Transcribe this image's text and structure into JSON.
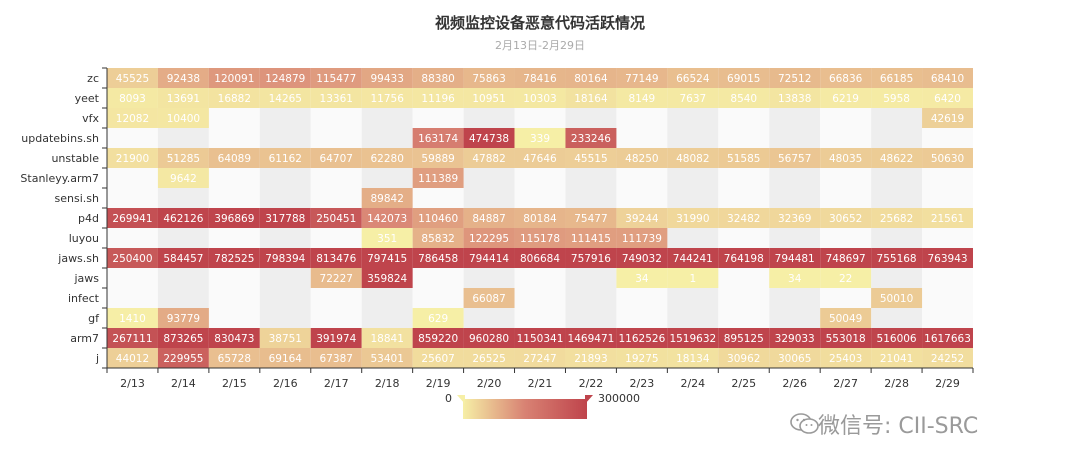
{
  "chart_data": {
    "type": "heatmap",
    "title": "视频监控设备恶意代码活跃情况",
    "subtitle": "2月13日-2月29日",
    "x": [
      "2/13",
      "2/14",
      "2/15",
      "2/16",
      "2/17",
      "2/18",
      "2/19",
      "2/20",
      "2/21",
      "2/22",
      "2/23",
      "2/24",
      "2/25",
      "2/26",
      "2/27",
      "2/28",
      "2/29"
    ],
    "y": [
      "zc",
      "yeet",
      "vfx",
      "updatebins.sh",
      "unstable",
      "Stanleyy.arm7",
      "sensi.sh",
      "p4d",
      "luyou",
      "jaws.sh",
      "jaws",
      "infect",
      "gf",
      "arm7",
      "j"
    ],
    "values": [
      [
        45525,
        92438,
        120091,
        124879,
        115477,
        99433,
        88380,
        75863,
        78416,
        80164,
        77149,
        66524,
        69015,
        72512,
        66836,
        66185,
        68410
      ],
      [
        8093,
        13691,
        16882,
        14265,
        13361,
        11756,
        11196,
        10951,
        10303,
        18164,
        8149,
        7637,
        8540,
        13838,
        6219,
        5958,
        6420
      ],
      [
        12082,
        10400,
        null,
        null,
        null,
        null,
        null,
        null,
        null,
        null,
        null,
        null,
        null,
        null,
        null,
        null,
        42619
      ],
      [
        null,
        null,
        null,
        null,
        null,
        null,
        163174,
        474738,
        339,
        233246,
        null,
        null,
        null,
        null,
        null,
        null,
        null
      ],
      [
        21900,
        51285,
        64089,
        61162,
        64707,
        62280,
        59889,
        47882,
        47646,
        45515,
        48250,
        48082,
        51585,
        56757,
        48035,
        48622,
        50630
      ],
      [
        null,
        9642,
        null,
        null,
        null,
        null,
        111389,
        null,
        null,
        null,
        null,
        null,
        null,
        null,
        null,
        null,
        null
      ],
      [
        null,
        null,
        null,
        null,
        null,
        89842,
        null,
        null,
        null,
        null,
        null,
        null,
        null,
        null,
        null,
        null,
        null
      ],
      [
        269941,
        462126,
        396869,
        317788,
        250451,
        142073,
        110460,
        84887,
        80184,
        75477,
        39244,
        31990,
        32482,
        32369,
        30652,
        25682,
        21561
      ],
      [
        null,
        null,
        null,
        null,
        null,
        351,
        85832,
        122295,
        115178,
        111415,
        111739,
        null,
        null,
        null,
        null,
        null,
        null
      ],
      [
        250400,
        584457,
        782525,
        798394,
        813476,
        797415,
        786458,
        794414,
        806684,
        757916,
        749032,
        744241,
        764198,
        794481,
        748697,
        755168,
        763943
      ],
      [
        null,
        null,
        null,
        null,
        72227,
        359824,
        null,
        null,
        null,
        null,
        34,
        1,
        null,
        34,
        22,
        null,
        null
      ],
      [
        null,
        null,
        null,
        null,
        null,
        null,
        null,
        66087,
        null,
        null,
        null,
        null,
        null,
        null,
        null,
        50010,
        null
      ],
      [
        1410,
        93779,
        null,
        null,
        null,
        null,
        629,
        null,
        null,
        null,
        null,
        null,
        null,
        null,
        50049,
        null,
        null
      ],
      [
        267111,
        873265,
        830473,
        38751,
        391974,
        18841,
        859220,
        960280,
        1150341,
        1469471,
        1162526,
        1519632,
        895125,
        329033,
        553018,
        516006,
        1617663
      ],
      [
        44012,
        229955,
        65728,
        69164,
        67387,
        53401,
        25607,
        26525,
        27247,
        21893,
        19275,
        18134,
        30962,
        30065,
        25403,
        21041,
        24252
      ]
    ],
    "visual_map": {
      "min": 0,
      "max": 300000,
      "min_label": "0",
      "max_label": "300000",
      "colors": [
        "#f6efa6",
        "#d88273",
        "#bf444c"
      ]
    },
    "split_area_colors": [
      "#fafafa",
      "#eeeeee"
    ]
  },
  "watermark": {
    "text": "微信号: CII-SRC",
    "icon": "wechat-icon"
  }
}
